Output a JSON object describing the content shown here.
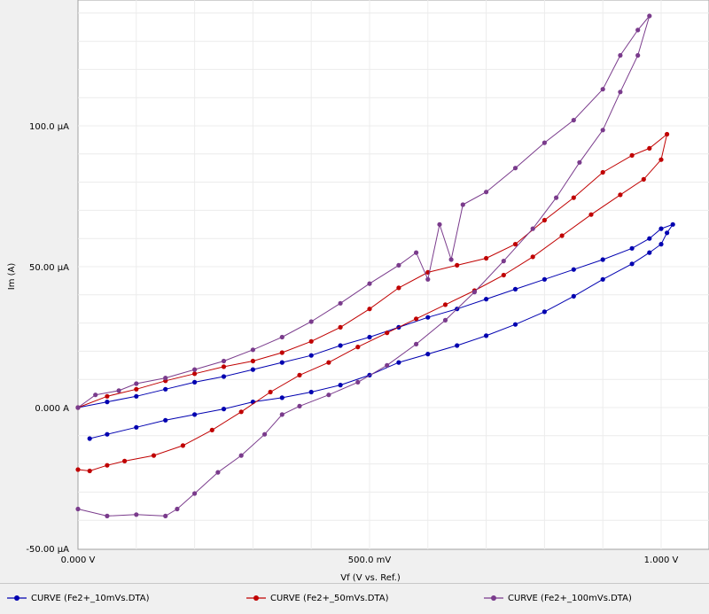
{
  "chart_data": {
    "type": "scatter",
    "title": "",
    "xlabel": "Vf (V vs. Ref.)",
    "ylabel": "Im (A)",
    "xlim": [
      0,
      1.05
    ],
    "ylim": [
      -5e-05,
      0.00015
    ],
    "x_ticks": [
      {
        "value": 0.0,
        "label": "0.000 V"
      },
      {
        "value": 0.5,
        "label": "500.0 mV"
      },
      {
        "value": 1.0,
        "label": "1.000 V"
      }
    ],
    "y_ticks": [
      {
        "value": -5e-05,
        "label": "-50.00 µA"
      },
      {
        "value": 0.0,
        "label": "0.000 A"
      },
      {
        "value": 5e-05,
        "label": "50.00 µA"
      },
      {
        "value": 0.0001,
        "label": "100.0 µA"
      }
    ],
    "grid": true,
    "legend_position": "bottom",
    "series": [
      {
        "name": "CURVE (Fe2+_10mVs.DTA)",
        "color": "#0000b0",
        "points": [
          [
            0.0,
            0.0
          ],
          [
            0.05,
            2e-06
          ],
          [
            0.1,
            4e-06
          ],
          [
            0.15,
            6.5e-06
          ],
          [
            0.2,
            9e-06
          ],
          [
            0.25,
            1.1e-05
          ],
          [
            0.3,
            1.35e-05
          ],
          [
            0.35,
            1.6e-05
          ],
          [
            0.4,
            1.85e-05
          ],
          [
            0.45,
            2.2e-05
          ],
          [
            0.5,
            2.5e-05
          ],
          [
            0.55,
            2.85e-05
          ],
          [
            0.6,
            3.2e-05
          ],
          [
            0.65,
            3.5e-05
          ],
          [
            0.7,
            3.85e-05
          ],
          [
            0.75,
            4.2e-05
          ],
          [
            0.8,
            4.55e-05
          ],
          [
            0.85,
            4.9e-05
          ],
          [
            0.9,
            5.25e-05
          ],
          [
            0.95,
            5.65e-05
          ],
          [
            0.98,
            6e-05
          ],
          [
            1.0,
            6.35e-05
          ],
          [
            1.02,
            6.5e-05
          ],
          [
            1.01,
            6.2e-05
          ],
          [
            1.0,
            5.8e-05
          ],
          [
            0.98,
            5.5e-05
          ],
          [
            0.95,
            5.1e-05
          ],
          [
            0.9,
            4.55e-05
          ],
          [
            0.85,
            3.95e-05
          ],
          [
            0.8,
            3.4e-05
          ],
          [
            0.75,
            2.95e-05
          ],
          [
            0.7,
            2.55e-05
          ],
          [
            0.65,
            2.2e-05
          ],
          [
            0.6,
            1.9e-05
          ],
          [
            0.55,
            1.6e-05
          ],
          [
            0.5,
            1.15e-05
          ],
          [
            0.45,
            8e-06
          ],
          [
            0.4,
            5.5e-06
          ],
          [
            0.35,
            3.5e-06
          ],
          [
            0.3,
            2e-06
          ],
          [
            0.25,
            -5e-07
          ],
          [
            0.2,
            -2.5e-06
          ],
          [
            0.15,
            -4.5e-06
          ],
          [
            0.1,
            -7e-06
          ],
          [
            0.05,
            -9.5e-06
          ],
          [
            0.02,
            -1.1e-05
          ]
        ]
      },
      {
        "name": "CURVE (Fe2+_50mVs.DTA)",
        "color": "#c00000",
        "points": [
          [
            0.0,
            0.0
          ],
          [
            0.05,
            4e-06
          ],
          [
            0.1,
            6.5e-06
          ],
          [
            0.15,
            9.5e-06
          ],
          [
            0.2,
            1.2e-05
          ],
          [
            0.25,
            1.45e-05
          ],
          [
            0.3,
            1.65e-05
          ],
          [
            0.35,
            1.95e-05
          ],
          [
            0.4,
            2.35e-05
          ],
          [
            0.45,
            2.85e-05
          ],
          [
            0.5,
            3.5e-05
          ],
          [
            0.55,
            4.25e-05
          ],
          [
            0.6,
            4.8e-05
          ],
          [
            0.65,
            5.05e-05
          ],
          [
            0.7,
            5.3e-05
          ],
          [
            0.75,
            5.8e-05
          ],
          [
            0.8,
            6.65e-05
          ],
          [
            0.85,
            7.45e-05
          ],
          [
            0.9,
            8.35e-05
          ],
          [
            0.95,
            8.95e-05
          ],
          [
            0.98,
            9.2e-05
          ],
          [
            1.01,
            9.7e-05
          ],
          [
            1.0,
            8.8e-05
          ],
          [
            0.97,
            8.1e-05
          ],
          [
            0.93,
            7.55e-05
          ],
          [
            0.88,
            6.85e-05
          ],
          [
            0.83,
            6.1e-05
          ],
          [
            0.78,
            5.35e-05
          ],
          [
            0.73,
            4.7e-05
          ],
          [
            0.68,
            4.15e-05
          ],
          [
            0.63,
            3.65e-05
          ],
          [
            0.58,
            3.15e-05
          ],
          [
            0.53,
            2.65e-05
          ],
          [
            0.48,
            2.15e-05
          ],
          [
            0.43,
            1.6e-05
          ],
          [
            0.38,
            1.15e-05
          ],
          [
            0.33,
            5.5e-06
          ],
          [
            0.28,
            -1.5e-06
          ],
          [
            0.23,
            -8e-06
          ],
          [
            0.18,
            -1.35e-05
          ],
          [
            0.13,
            -1.7e-05
          ],
          [
            0.08,
            -1.9e-05
          ],
          [
            0.05,
            -2.05e-05
          ],
          [
            0.02,
            -2.25e-05
          ],
          [
            0.0,
            -2.2e-05
          ]
        ]
      },
      {
        "name": "CURVE (Fe2+_100mVs.DTA)",
        "color": "#7a3b8c",
        "points": [
          [
            0.0,
            0.0
          ],
          [
            0.03,
            4.5e-06
          ],
          [
            0.07,
            6e-06
          ],
          [
            0.1,
            8.5e-06
          ],
          [
            0.15,
            1.05e-05
          ],
          [
            0.2,
            1.35e-05
          ],
          [
            0.25,
            1.65e-05
          ],
          [
            0.3,
            2.05e-05
          ],
          [
            0.35,
            2.5e-05
          ],
          [
            0.4,
            3.05e-05
          ],
          [
            0.45,
            3.7e-05
          ],
          [
            0.5,
            4.4e-05
          ],
          [
            0.55,
            5.05e-05
          ],
          [
            0.58,
            5.5e-05
          ],
          [
            0.6,
            4.55e-05
          ],
          [
            0.62,
            6.5e-05
          ],
          [
            0.64,
            5.25e-05
          ],
          [
            0.66,
            7.2e-05
          ],
          [
            0.7,
            7.65e-05
          ],
          [
            0.75,
            8.5e-05
          ],
          [
            0.8,
            9.4e-05
          ],
          [
            0.85,
            0.000102
          ],
          [
            0.9,
            0.000113
          ],
          [
            0.93,
            0.000125
          ],
          [
            0.96,
            0.000134
          ],
          [
            0.98,
            0.000139
          ],
          [
            0.96,
            0.000125
          ],
          [
            0.93,
            0.000112
          ],
          [
            0.9,
            9.85e-05
          ],
          [
            0.86,
            8.7e-05
          ],
          [
            0.82,
            7.45e-05
          ],
          [
            0.78,
            6.35e-05
          ],
          [
            0.73,
            5.2e-05
          ],
          [
            0.68,
            4.1e-05
          ],
          [
            0.63,
            3.1e-05
          ],
          [
            0.58,
            2.25e-05
          ],
          [
            0.53,
            1.5e-05
          ],
          [
            0.48,
            9e-06
          ],
          [
            0.43,
            4.5e-06
          ],
          [
            0.38,
            5e-07
          ],
          [
            0.35,
            -2.5e-06
          ],
          [
            0.32,
            -9.5e-06
          ],
          [
            0.28,
            -1.7e-05
          ],
          [
            0.24,
            -2.3e-05
          ],
          [
            0.2,
            -3.05e-05
          ],
          [
            0.17,
            -3.6e-05
          ],
          [
            0.15,
            -3.85e-05
          ],
          [
            0.1,
            -3.8e-05
          ],
          [
            0.05,
            -3.85e-05
          ],
          [
            0.0,
            -3.6e-05
          ]
        ]
      }
    ]
  }
}
